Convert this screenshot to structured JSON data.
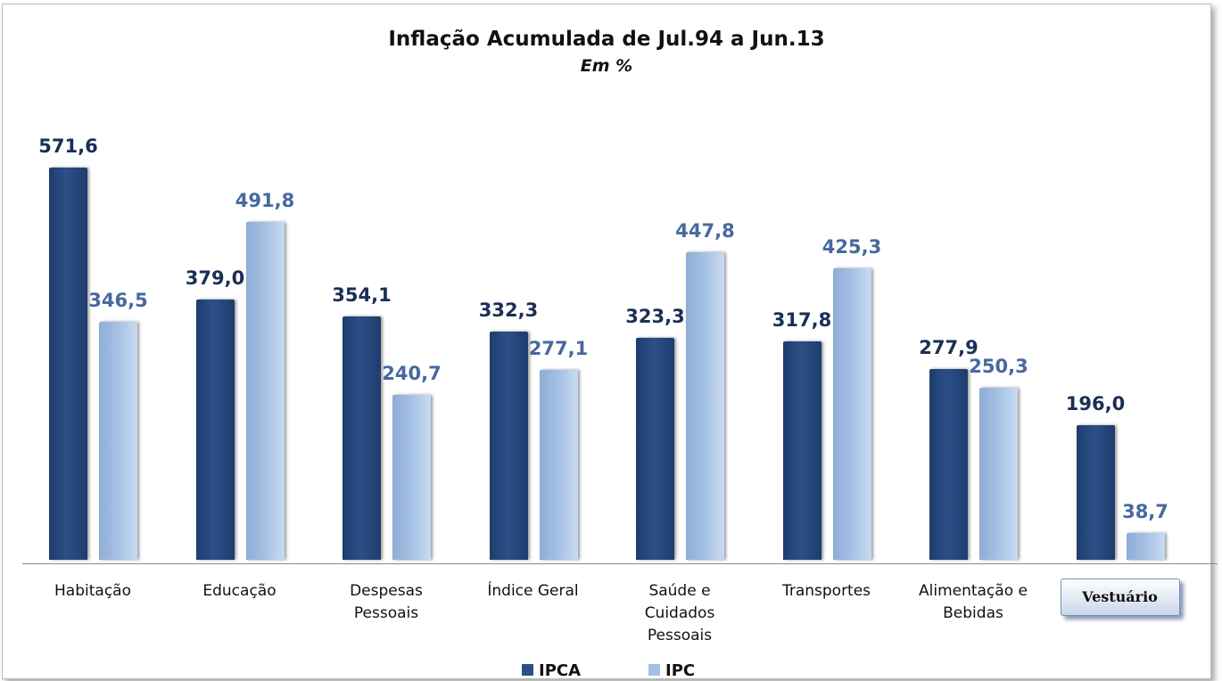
{
  "chart_data": {
    "type": "bar",
    "title": "Inflação Acumulada de Jul.94 a Jun.13",
    "subtitle": "Em %",
    "categories": [
      "Habitação",
      "Educação",
      "Despesas\nPessoais",
      "Índice Geral",
      "Saúde e\nCuidados\nPessoais",
      "Transportes",
      "Alimentação e\nBebidas",
      "Vestuário"
    ],
    "series": [
      {
        "name": "IPCA",
        "color": "#2b5088",
        "label_color": "#1a2f55",
        "values": [
          571.6,
          379.0,
          354.1,
          332.3,
          323.3,
          317.8,
          277.9,
          196.0
        ],
        "value_labels": [
          "571,6",
          "379,0",
          "354,1",
          "332,3",
          "323,3",
          "317,8",
          "277,9",
          "196,0"
        ]
      },
      {
        "name": "IPC",
        "color": "#a3bfe2",
        "label_color": "#46699e",
        "values": [
          346.5,
          491.8,
          240.7,
          277.1,
          447.8,
          425.3,
          250.3,
          38.7
        ],
        "value_labels": [
          "346,5",
          "491,8",
          "240,7",
          "277,1",
          "447,8",
          "425,3",
          "250,3",
          "38,7"
        ]
      }
    ],
    "legend": "bottom"
  }
}
